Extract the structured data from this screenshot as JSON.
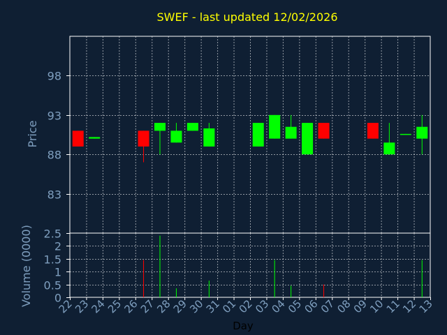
{
  "chart_data": {
    "type": "candlestick",
    "title": "SWEF - last updated 12/02/2026",
    "xlabel": "Day",
    "price_panel": {
      "ylabel": "Price",
      "ylim": [
        78,
        103
      ],
      "yticks": [
        83,
        88,
        93,
        98
      ],
      "grid": true
    },
    "volume_panel": {
      "ylabel": "Volume (0000)",
      "ylim": [
        0,
        2.5
      ],
      "yticks": [
        0,
        0.5,
        1,
        1.5,
        2,
        2.5
      ],
      "grid": true
    },
    "x_tick_labels": [
      "22",
      "23",
      "24",
      "25",
      "26",
      "27",
      "28",
      "29",
      "30",
      "31",
      "01",
      "02",
      "03",
      "04",
      "05",
      "06",
      "07",
      "08",
      "09",
      "10",
      "11",
      "12",
      "13"
    ],
    "colors": {
      "background": "#0f1f33",
      "up": "#00ff00",
      "down": "#ff0000",
      "title": "#ffff00",
      "text": "#7f9fbf",
      "grid": "#ffffff",
      "axis": "#ffffff"
    },
    "candles": [
      {
        "x": 0,
        "open": 91.0,
        "close": 89.0,
        "high": 91.0,
        "low": 89.0
      },
      {
        "x": 1,
        "open": 90.0,
        "close": 90.2,
        "high": 90.2,
        "low": 90.0
      },
      {
        "x": 4,
        "open": 91.0,
        "close": 89.0,
        "high": 91.0,
        "low": 87.0
      },
      {
        "x": 5,
        "open": 91.0,
        "close": 92.0,
        "high": 92.0,
        "low": 88.0
      },
      {
        "x": 6,
        "open": 89.5,
        "close": 91.0,
        "high": 92.0,
        "low": 89.5
      },
      {
        "x": 7,
        "open": 91.0,
        "close": 92.0,
        "high": 92.0,
        "low": 91.0
      },
      {
        "x": 8,
        "open": 89.0,
        "close": 91.3,
        "high": 92.0,
        "low": 89.0
      },
      {
        "x": 11,
        "open": 89.0,
        "close": 92.0,
        "high": 92.0,
        "low": 89.0
      },
      {
        "x": 12,
        "open": 90.0,
        "close": 93.0,
        "high": 93.0,
        "low": 90.0
      },
      {
        "x": 13,
        "open": 90.0,
        "close": 91.5,
        "high": 93.0,
        "low": 90.0
      },
      {
        "x": 14,
        "open": 88.0,
        "close": 92.0,
        "high": 92.0,
        "low": 88.0
      },
      {
        "x": 15,
        "open": 92.0,
        "close": 90.0,
        "high": 92.0,
        "low": 90.0
      },
      {
        "x": 18,
        "open": 92.0,
        "close": 90.0,
        "high": 92.0,
        "low": 90.0
      },
      {
        "x": 19,
        "open": 88.0,
        "close": 89.5,
        "high": 92.0,
        "low": 88.0
      },
      {
        "x": 20,
        "open": 90.5,
        "close": 90.6,
        "high": 90.6,
        "low": 90.5
      },
      {
        "x": 21,
        "open": 90.0,
        "close": 91.5,
        "high": 93.0,
        "low": 88.0
      }
    ],
    "volumes": [
      {
        "x": 4,
        "value": 1.45,
        "dir": "down"
      },
      {
        "x": 5,
        "value": 2.4,
        "dir": "up"
      },
      {
        "x": 6,
        "value": 0.35,
        "dir": "up"
      },
      {
        "x": 8,
        "value": 0.65,
        "dir": "up"
      },
      {
        "x": 12,
        "value": 1.45,
        "dir": "up"
      },
      {
        "x": 13,
        "value": 0.45,
        "dir": "up"
      },
      {
        "x": 15,
        "value": 0.5,
        "dir": "down"
      },
      {
        "x": 21,
        "value": 1.45,
        "dir": "up"
      }
    ]
  }
}
